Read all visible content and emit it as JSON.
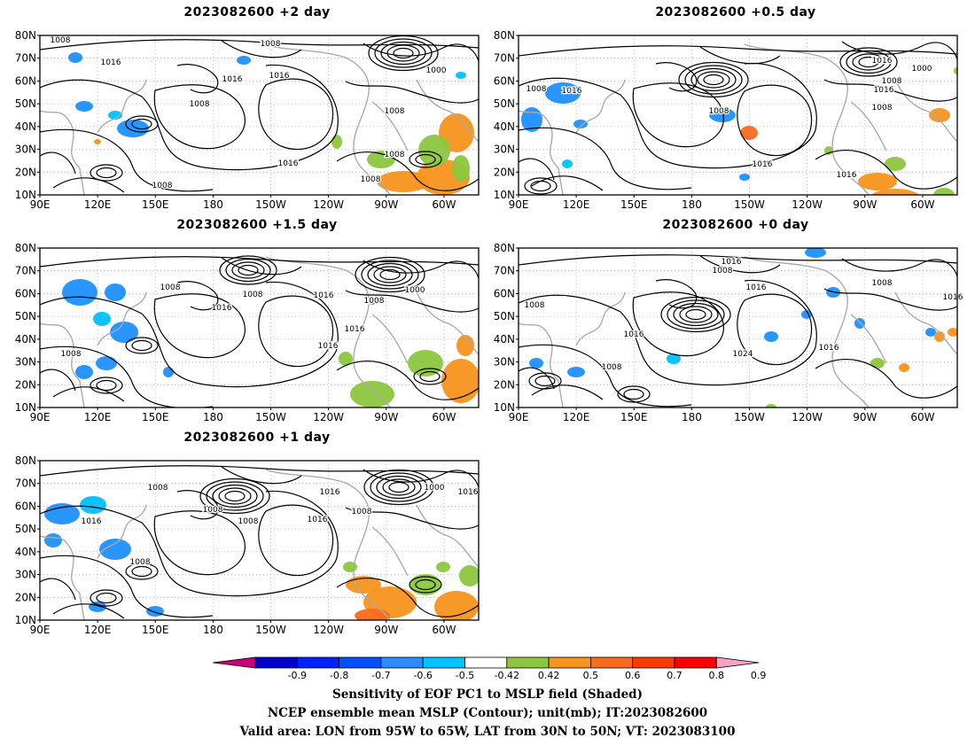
{
  "panels": [
    {
      "id": "p1",
      "title": "2023082600 +2 day",
      "contour_labels": [
        "1008",
        "1008",
        "1016",
        "1016",
        "1016",
        "1008",
        "1000",
        "1008",
        "1016",
        "1008",
        "1008",
        "1008"
      ]
    },
    {
      "id": "p2",
      "title": "2023082600 +0.5 day",
      "contour_labels": [
        "1016",
        "1016",
        "1008",
        "1016",
        "1000",
        "1008",
        "1008",
        "1008",
        "1016",
        "1016"
      ]
    },
    {
      "id": "p3",
      "title": "2023082600 +1.5 day",
      "contour_labels": [
        "1008",
        "1016",
        "1008",
        "1016",
        "1000",
        "1008",
        "1016",
        "1016",
        "1008"
      ]
    },
    {
      "id": "p4",
      "title": "2023082600 +0 day",
      "contour_labels": [
        "1016",
        "1008",
        "1016",
        "1008",
        "1016",
        "1008",
        "1016",
        "1024",
        "1016",
        "1008"
      ]
    },
    {
      "id": "p5",
      "title": "2023082600 +1 day",
      "contour_labels": [
        "1008",
        "1016",
        "1000",
        "1016",
        "1016",
        "1008",
        "1008",
        "1016",
        "1008",
        "1008"
      ]
    }
  ],
  "axes": {
    "lat_ticks": [
      "80N",
      "70N",
      "60N",
      "50N",
      "40N",
      "30N",
      "20N",
      "10N"
    ],
    "lon_ticks": [
      "90E",
      "120E",
      "150E",
      "180",
      "150W",
      "120W",
      "90W",
      "60W"
    ]
  },
  "colorbar": {
    "labels": [
      "-0.9",
      "-0.8",
      "-0.7",
      "-0.6",
      "-0.5",
      "-0.42",
      "0.42",
      "0.5",
      "0.6",
      "0.7",
      "0.8",
      "0.9"
    ],
    "colors": [
      "#0000c8",
      "#0022ff",
      "#0050ff",
      "#2b8cff",
      "#00c4ff",
      "#ffffff",
      "#8cc63f",
      "#f7941d",
      "#f86b1b",
      "#ff3c00",
      "#ff0000"
    ],
    "left_tip": "#c8007f",
    "right_tip": "#f7a1c4"
  },
  "shading_colors": {
    "blue": "#1e90ff",
    "cyan": "#00bfff",
    "green": "#8cc63f",
    "orange": "#f7941d",
    "deeporange": "#f86b1b"
  },
  "captions": [
    "Sensitivity of EOF PC1 to MSLP field (Shaded)",
    "NCEP ensemble mean MSLP (Contour); unit(mb); IT:2023082600",
    "Valid area: LON from 95W to 65W, LAT from 30N to 50N; VT: 2023083100"
  ]
}
